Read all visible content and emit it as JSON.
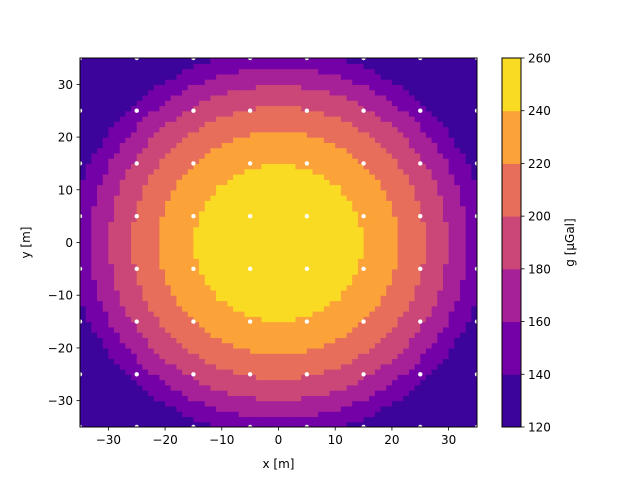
{
  "chart_data": {
    "type": "contourf",
    "title": "",
    "xlabel": "x [m]",
    "ylabel": "y [m]",
    "colorbar_label": "g [µGal]",
    "xlim": [
      -35,
      35
    ],
    "ylim": [
      -35,
      35
    ],
    "xticks": [
      -30,
      -20,
      -10,
      0,
      10,
      20,
      30
    ],
    "yticks": [
      -30,
      -20,
      -10,
      0,
      10,
      20,
      30
    ],
    "levels": [
      120,
      140,
      160,
      180,
      200,
      220,
      240,
      260
    ],
    "level_colors": [
      "#3c049b",
      "#7401a8",
      "#a62098",
      "#cb4778",
      "#e86e5c",
      "#fba238",
      "#fadb24"
    ],
    "model": {
      "peak": 260,
      "center": [
        0,
        0
      ],
      "falloff_per_m2": 0.09
    },
    "grid_points": {
      "x": [
        -35,
        -25,
        -15,
        -5,
        5,
        15,
        25,
        35
      ],
      "y": [
        -35,
        -25,
        -15,
        -5,
        5,
        15,
        25,
        35
      ]
    },
    "point_color": "#ffffff",
    "grid": false
  }
}
